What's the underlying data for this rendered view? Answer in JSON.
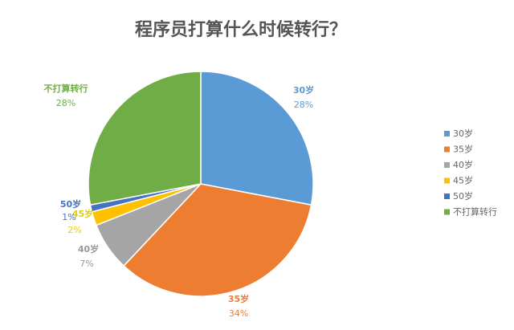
{
  "chart_data": {
    "type": "pie",
    "title": "程序员打算什么时候转行？",
    "categories": [
      "30岁",
      "35岁",
      "40岁",
      "45岁",
      "50岁",
      "不打算转行"
    ],
    "values": [
      28,
      34,
      7,
      2,
      1,
      28
    ],
    "value_labels": [
      "28%",
      "34%",
      "7%",
      "2%",
      "1%",
      "28%"
    ],
    "colors": [
      "#5b9bd5",
      "#ed7d31",
      "#a5a5a5",
      "#ffc000",
      "#4472c4",
      "#70ad47"
    ],
    "label_colors": [
      "#5b9bd5",
      "#ed7d31",
      "#999999",
      "#e0d000",
      "#4472c4",
      "#70ad47"
    ],
    "start_angle": "top, clockwise",
    "legend": "right"
  }
}
